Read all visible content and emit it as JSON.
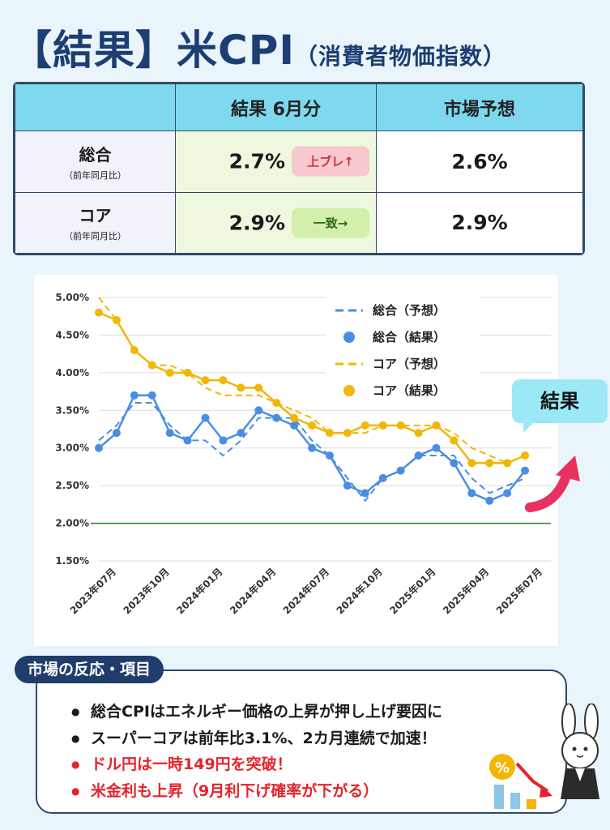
{
  "title": {
    "main": "【結果】米CPI",
    "sub": "（消費者物価指数）"
  },
  "table": {
    "head": {
      "blank": "",
      "result": "結果 6月分",
      "forecast": "市場予想"
    },
    "rows": [
      {
        "label": "総合",
        "sub": "（前年同月比）",
        "result": "2.7%",
        "badge": "上ブレ↑",
        "badge_color": "#d2303c",
        "forecast": "2.6%"
      },
      {
        "label": "コア",
        "sub": "（前年同月比）",
        "result": "2.9%",
        "badge": "一致→",
        "badge_color": "#2f6a1c",
        "forecast": "2.9%"
      }
    ]
  },
  "callout": "結果",
  "colors": {
    "headline": "#7fd9ee",
    "total": "#4a8ee3",
    "core": "#f2b705",
    "baseline": "#2e7d32",
    "arrow": "#e8315e"
  },
  "chart_data": {
    "type": "line",
    "ylim": [
      1.5,
      5.0
    ],
    "yticks": [
      "5.00%",
      "4.50%",
      "4.00%",
      "3.50%",
      "3.00%",
      "2.50%",
      "2.00%",
      "1.50%"
    ],
    "ytick_values": [
      5.0,
      4.5,
      4.0,
      3.5,
      3.0,
      2.5,
      2.0,
      1.5
    ],
    "xtick_labels": [
      "2023年07月",
      "2023年10月",
      "2024年01月",
      "2024年04月",
      "2024年07月",
      "2024年10月",
      "2025年01月",
      "2025年04月",
      "2025年07月"
    ],
    "xtick_index": [
      1,
      4,
      7,
      10,
      13,
      16,
      19,
      22,
      25
    ],
    "x": [
      "2023-06",
      "2023-07",
      "2023-08",
      "2023-09",
      "2023-10",
      "2023-11",
      "2023-12",
      "2024-01",
      "2024-02",
      "2024-03",
      "2024-04",
      "2024-05",
      "2024-06",
      "2024-07",
      "2024-08",
      "2024-09",
      "2024-10",
      "2024-11",
      "2024-12",
      "2025-01",
      "2025-02",
      "2025-03",
      "2025-04",
      "2025-05",
      "2025-06",
      "2025-07"
    ],
    "reference_line": 2.0,
    "legend": "top-right",
    "series": [
      {
        "name": "総合（予想）",
        "style": "dashed",
        "color": "#4a8ee3",
        "values": [
          3.1,
          3.3,
          3.6,
          3.6,
          3.3,
          3.1,
          3.1,
          2.9,
          3.1,
          3.4,
          3.4,
          3.4,
          3.1,
          2.9,
          2.6,
          2.3,
          2.6,
          2.7,
          2.9,
          2.9,
          2.9,
          2.6,
          2.4,
          2.5,
          2.6,
          null
        ]
      },
      {
        "name": "総合（結果）",
        "style": "markers",
        "color": "#4a8ee3",
        "values": [
          3.0,
          3.2,
          3.7,
          3.7,
          3.2,
          3.1,
          3.4,
          3.1,
          3.2,
          3.5,
          3.4,
          3.3,
          3.0,
          2.9,
          2.5,
          2.4,
          2.6,
          2.7,
          2.9,
          3.0,
          2.8,
          2.4,
          2.3,
          2.4,
          2.7,
          null
        ]
      },
      {
        "name": "コア（予想）",
        "style": "dashed",
        "color": "#f2b705",
        "values": [
          5.0,
          4.7,
          4.3,
          4.1,
          4.1,
          4.0,
          3.8,
          3.7,
          3.7,
          3.7,
          3.6,
          3.5,
          3.4,
          3.2,
          3.2,
          3.2,
          3.3,
          3.3,
          3.3,
          3.3,
          3.2,
          3.0,
          2.9,
          2.8,
          2.9,
          null
        ]
      },
      {
        "name": "コア（結果）",
        "style": "markers",
        "color": "#f2b705",
        "values": [
          4.8,
          4.7,
          4.3,
          4.1,
          4.0,
          4.0,
          3.9,
          3.9,
          3.8,
          3.8,
          3.6,
          3.4,
          3.3,
          3.2,
          3.2,
          3.3,
          3.3,
          3.3,
          3.2,
          3.3,
          3.1,
          2.8,
          2.8,
          2.8,
          2.9,
          null
        ]
      }
    ]
  },
  "reaction": {
    "label": "市場の反応・項目",
    "items": [
      {
        "text": "総合CPIはエネルギー価格の上昇が押し上げ要因に",
        "color": "dark"
      },
      {
        "text": "スーパーコアは前年比3.1%、2カ月連続で加速！",
        "color": "dark"
      },
      {
        "text": "ドル円は一時149円を突破！",
        "color": "red"
      },
      {
        "text": "米金利も上昇（9月利下げ確率が下がる）",
        "color": "red"
      }
    ]
  },
  "illustration": {
    "percent_icon": "%"
  }
}
